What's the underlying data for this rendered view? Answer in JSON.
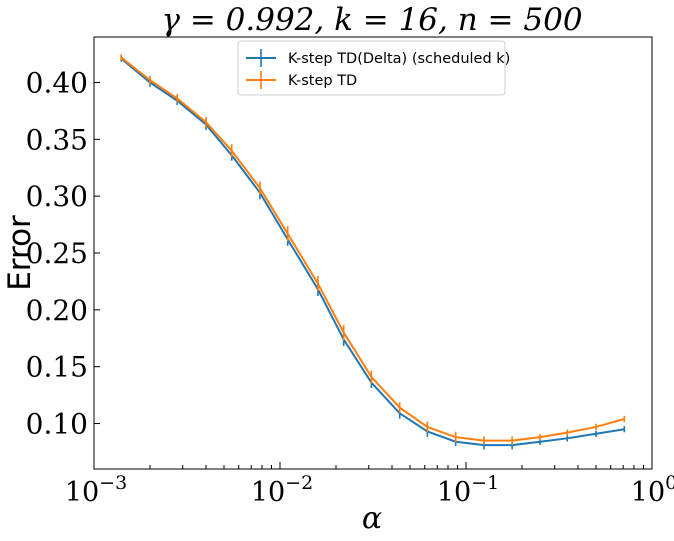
{
  "chart_data": {
    "type": "line",
    "title": "γ = 0.992, k = 16, n = 500",
    "xlabel": "α",
    "ylabel": "Error",
    "xscale": "log",
    "xlim": [
      0.001,
      1
    ],
    "ylim": [
      0.06,
      0.44
    ],
    "x_ticks": [
      {
        "value": 0.001,
        "base": "10",
        "exp": "−3"
      },
      {
        "value": 0.01,
        "base": "10",
        "exp": "−2"
      },
      {
        "value": 0.1,
        "base": "10",
        "exp": "−1"
      },
      {
        "value": 1,
        "base": "10",
        "exp": "0"
      }
    ],
    "y_ticks": [
      {
        "value": 0.1,
        "label": "0.10"
      },
      {
        "value": 0.15,
        "label": "0.15"
      },
      {
        "value": 0.2,
        "label": "0.20"
      },
      {
        "value": 0.25,
        "label": "0.25"
      },
      {
        "value": 0.3,
        "label": "0.30"
      },
      {
        "value": 0.35,
        "label": "0.35"
      },
      {
        "value": 0.4,
        "label": "0.40"
      }
    ],
    "x": [
      0.0014,
      0.002,
      0.0028,
      0.004,
      0.0055,
      0.0078,
      0.011,
      0.016,
      0.022,
      0.031,
      0.044,
      0.062,
      0.088,
      0.125,
      0.177,
      0.25,
      0.35,
      0.5,
      0.71
    ],
    "series": [
      {
        "name": "K-step TD(Delta) (scheduled k)",
        "color": "#1f77b4",
        "values": [
          0.421,
          0.4,
          0.384,
          0.363,
          0.336,
          0.303,
          0.262,
          0.218,
          0.174,
          0.136,
          0.109,
          0.093,
          0.084,
          0.081,
          0.081,
          0.084,
          0.087,
          0.091,
          0.095
        ],
        "errors": [
          0.001,
          0.002,
          0.002,
          0.003,
          0.003,
          0.004,
          0.004,
          0.004,
          0.004,
          0.003,
          0.003,
          0.003,
          0.002,
          0.002,
          0.002,
          0.001,
          0.001,
          0.001,
          0.001
        ]
      },
      {
        "name": "K-step TD",
        "color": "#ff7f0e",
        "values": [
          0.422,
          0.402,
          0.386,
          0.365,
          0.34,
          0.307,
          0.267,
          0.223,
          0.18,
          0.141,
          0.114,
          0.097,
          0.088,
          0.085,
          0.085,
          0.088,
          0.092,
          0.097,
          0.104
        ],
        "errors": [
          0.001,
          0.002,
          0.002,
          0.003,
          0.004,
          0.004,
          0.005,
          0.005,
          0.005,
          0.004,
          0.003,
          0.003,
          0.003,
          0.002,
          0.002,
          0.001,
          0.001,
          0.001,
          0.001
        ]
      }
    ],
    "legend_position": "upper-center",
    "grid": false
  }
}
